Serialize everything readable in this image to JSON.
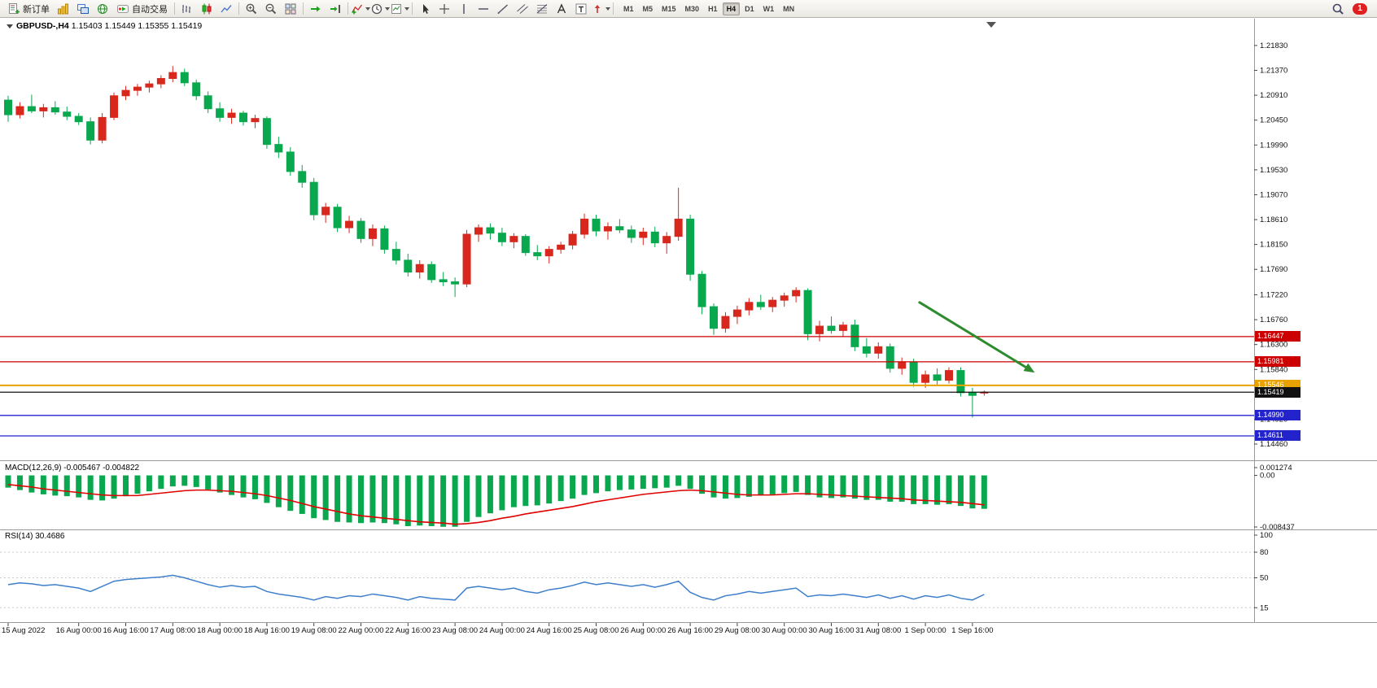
{
  "toolbar": {
    "new_order": "新订单",
    "autotrade": "自动交易",
    "timeframes": [
      "M1",
      "M5",
      "M15",
      "M30",
      "H1",
      "H4",
      "D1",
      "W1",
      "MN"
    ],
    "active_timeframe": "H4",
    "notification_badge": "1"
  },
  "chart": {
    "symbol_period": "GBPUSD-,H4",
    "ohlc": "1.15403 1.15449 1.15355 1.15419"
  },
  "colors": {
    "up": "#D8281E",
    "down": "#09A84E",
    "hline": {
      "red": "#CC0000",
      "orange": "#E8A200",
      "blue": "#2323CC",
      "black": "#111111"
    }
  },
  "chart_data": {
    "type": "candlestick",
    "symbol": "GBPUSD-",
    "period": "H4",
    "current": {
      "open": "1.15403",
      "high": "1.15449",
      "low": "1.15355",
      "close": "1.15419"
    },
    "price_axis": {
      "max": 1.2225,
      "min": 1.1425,
      "labels": [
        "1.21830",
        "1.21370",
        "1.20910",
        "1.20450",
        "1.19990",
        "1.19530",
        "1.19070",
        "1.18610",
        "1.18150",
        "1.17690",
        "1.17220",
        "1.16760",
        "1.16300",
        "1.15840",
        "1.14920",
        "1.14460"
      ]
    },
    "candles": [
      [
        1.2082,
        1.209,
        1.2042,
        1.2055
      ],
      [
        1.2055,
        1.2078,
        1.2048,
        1.207
      ],
      [
        1.207,
        1.2092,
        1.2058,
        1.2062
      ],
      [
        1.2062,
        1.2075,
        1.205,
        1.2068
      ],
      [
        1.2068,
        1.208,
        1.2055,
        1.206
      ],
      [
        1.206,
        1.207,
        1.2045,
        1.2052
      ],
      [
        1.2052,
        1.2058,
        1.2036,
        1.2042
      ],
      [
        1.2042,
        1.205,
        1.2,
        1.2008
      ],
      [
        1.2008,
        1.2058,
        1.2002,
        1.205
      ],
      [
        1.205,
        1.2096,
        1.2045,
        1.209
      ],
      [
        1.209,
        1.2108,
        1.2082,
        1.21
      ],
      [
        1.21,
        1.2112,
        1.209,
        1.2106
      ],
      [
        1.2106,
        1.2118,
        1.2096,
        1.2112
      ],
      [
        1.2112,
        1.2128,
        1.2104,
        1.2122
      ],
      [
        1.2122,
        1.2145,
        1.2115,
        1.2133
      ],
      [
        1.2133,
        1.214,
        1.2108,
        1.2114
      ],
      [
        1.2114,
        1.212,
        1.2082,
        1.209
      ],
      [
        1.209,
        1.2098,
        1.2058,
        1.2066
      ],
      [
        1.2066,
        1.2078,
        1.2042,
        1.205
      ],
      [
        1.205,
        1.2066,
        1.2038,
        1.2058
      ],
      [
        1.2058,
        1.2062,
        1.2035,
        1.2042
      ],
      [
        1.2042,
        1.2055,
        1.203,
        1.2048
      ],
      [
        1.2048,
        1.2052,
        1.1992,
        1.2
      ],
      [
        1.2,
        1.2014,
        1.1975,
        1.1986
      ],
      [
        1.1986,
        1.1995,
        1.1942,
        1.195
      ],
      [
        1.195,
        1.1962,
        1.192,
        1.193
      ],
      [
        1.193,
        1.1938,
        1.186,
        1.187
      ],
      [
        1.187,
        1.1892,
        1.1855,
        1.1884
      ],
      [
        1.1884,
        1.189,
        1.1838,
        1.1846
      ],
      [
        1.1846,
        1.1868,
        1.1836,
        1.1858
      ],
      [
        1.1858,
        1.1864,
        1.1818,
        1.1826
      ],
      [
        1.1826,
        1.1852,
        1.1812,
        1.1844
      ],
      [
        1.1844,
        1.185,
        1.1798,
        1.1806
      ],
      [
        1.1806,
        1.182,
        1.1778,
        1.1786
      ],
      [
        1.1786,
        1.1798,
        1.1756,
        1.1764
      ],
      [
        1.1764,
        1.1786,
        1.1752,
        1.1778
      ],
      [
        1.1778,
        1.1784,
        1.1744,
        1.175
      ],
      [
        1.175,
        1.1764,
        1.1738,
        1.1746
      ],
      [
        1.1746,
        1.1754,
        1.1718,
        1.1742
      ],
      [
        1.1742,
        1.1842,
        1.1736,
        1.1834
      ],
      [
        1.1834,
        1.1852,
        1.182,
        1.1846
      ],
      [
        1.1846,
        1.1854,
        1.1824,
        1.1836
      ],
      [
        1.1836,
        1.1846,
        1.1812,
        1.182
      ],
      [
        1.182,
        1.1836,
        1.1808,
        1.183
      ],
      [
        1.183,
        1.1834,
        1.1794,
        1.18
      ],
      [
        1.18,
        1.1814,
        1.1786,
        1.1794
      ],
      [
        1.1794,
        1.1812,
        1.178,
        1.1806
      ],
      [
        1.1806,
        1.182,
        1.1798,
        1.1814
      ],
      [
        1.1814,
        1.184,
        1.1806,
        1.1834
      ],
      [
        1.1834,
        1.1872,
        1.1826,
        1.1862
      ],
      [
        1.1862,
        1.187,
        1.183,
        1.184
      ],
      [
        1.184,
        1.1856,
        1.1824,
        1.1848
      ],
      [
        1.1848,
        1.1862,
        1.1836,
        1.1842
      ],
      [
        1.1842,
        1.185,
        1.1818,
        1.1828
      ],
      [
        1.1828,
        1.1846,
        1.1814,
        1.1838
      ],
      [
        1.1838,
        1.1848,
        1.181,
        1.1818
      ],
      [
        1.1818,
        1.1838,
        1.1798,
        1.183
      ],
      [
        1.183,
        1.192,
        1.1822,
        1.1862
      ],
      [
        1.1862,
        1.187,
        1.1748,
        1.176
      ],
      [
        1.176,
        1.1766,
        1.1686,
        1.17
      ],
      [
        1.17,
        1.1706,
        1.1648,
        1.166
      ],
      [
        1.166,
        1.169,
        1.1652,
        1.1682
      ],
      [
        1.1682,
        1.1702,
        1.1668,
        1.1694
      ],
      [
        1.1694,
        1.1716,
        1.1684,
        1.1708
      ],
      [
        1.1708,
        1.1722,
        1.1694,
        1.17
      ],
      [
        1.17,
        1.1718,
        1.169,
        1.1712
      ],
      [
        1.1712,
        1.1726,
        1.17,
        1.172
      ],
      [
        1.172,
        1.1736,
        1.1708,
        1.173
      ],
      [
        1.173,
        1.1734,
        1.1638,
        1.165
      ],
      [
        1.165,
        1.1674,
        1.1636,
        1.1664
      ],
      [
        1.1664,
        1.1682,
        1.165,
        1.1656
      ],
      [
        1.1656,
        1.1672,
        1.1644,
        1.1666
      ],
      [
        1.1666,
        1.1676,
        1.1618,
        1.1626
      ],
      [
        1.1626,
        1.1642,
        1.1606,
        1.1614
      ],
      [
        1.1614,
        1.1634,
        1.1604,
        1.1626
      ],
      [
        1.1626,
        1.1632,
        1.1578,
        1.1586
      ],
      [
        1.1586,
        1.1606,
        1.1574,
        1.1598
      ],
      [
        1.1598,
        1.1604,
        1.1552,
        1.156
      ],
      [
        1.156,
        1.1582,
        1.155,
        1.1574
      ],
      [
        1.1574,
        1.1586,
        1.1556,
        1.1564
      ],
      [
        1.1564,
        1.1588,
        1.1558,
        1.1582
      ],
      [
        1.1582,
        1.1588,
        1.1534,
        1.1541
      ],
      [
        1.1541,
        1.155,
        1.1495,
        1.1536
      ],
      [
        1.15403,
        1.15449,
        1.15355,
        1.15419
      ]
    ],
    "hlines": [
      {
        "price": 1.16447,
        "label": "1.16447",
        "color": "red"
      },
      {
        "price": 1.15981,
        "label": "1.15981",
        "color": "red"
      },
      {
        "price": 1.15546,
        "label": "1.15546",
        "color": "orange"
      },
      {
        "price": 1.15419,
        "label": "1.15419",
        "color": "black",
        "role": "current-price"
      },
      {
        "price": 1.1499,
        "label": "1.14990",
        "color": "blue"
      },
      {
        "price": 1.14611,
        "label": "1.14611",
        "color": "blue"
      }
    ],
    "arrow_annotation": {
      "from": {
        "index": 77.5,
        "price": 1.1708
      },
      "to": {
        "index": 87.3,
        "price": 1.1578
      },
      "color": "#2E8B2E"
    },
    "time_axis": {
      "labels": [
        "15 Aug 2022",
        "16 Aug 00:00",
        "16 Aug 16:00",
        "17 Aug 08:00",
        "18 Aug 00:00",
        "18 Aug 16:00",
        "19 Aug 08:00",
        "22 Aug 00:00",
        "22 Aug 16:00",
        "23 Aug 08:00",
        "24 Aug 00:00",
        "24 Aug 16:00",
        "25 Aug 08:00",
        "26 Aug 00:00",
        "26 Aug 16:00",
        "29 Aug 08:00",
        "30 Aug 00:00",
        "30 Aug 16:00",
        "31 Aug 08:00",
        "1 Sep 00:00",
        "1 Sep 16:00"
      ],
      "indices": [
        0,
        6,
        10,
        14,
        18,
        22,
        26,
        30,
        34,
        38,
        42,
        46,
        50,
        54,
        58,
        62,
        66,
        70,
        74,
        78,
        82
      ]
    },
    "indicators": [
      {
        "name": "MACD",
        "label": "MACD(12,26,9)",
        "values_text": "-0.005467 -0.004822",
        "axis": {
          "max": 0.001274,
          "min": -0.008437,
          "labels": [
            "0.001274",
            "0.00",
            "-0.008437"
          ]
        },
        "colors": {
          "histogram": "#09A84E",
          "signal": "#E00000"
        },
        "histogram": [
          -0.002,
          -0.0024,
          -0.0028,
          -0.0031,
          -0.0033,
          -0.0034,
          -0.0036,
          -0.004,
          -0.0041,
          -0.0038,
          -0.0034,
          -0.003,
          -0.0026,
          -0.0022,
          -0.0018,
          -0.0017,
          -0.0019,
          -0.0023,
          -0.0028,
          -0.0032,
          -0.0036,
          -0.0039,
          -0.0045,
          -0.0052,
          -0.0058,
          -0.0063,
          -0.007,
          -0.0073,
          -0.0076,
          -0.0077,
          -0.0078,
          -0.0077,
          -0.0078,
          -0.008,
          -0.0083,
          -0.0082,
          -0.0083,
          -0.0084,
          -0.0084,
          -0.0076,
          -0.0068,
          -0.0062,
          -0.0057,
          -0.0052,
          -0.005,
          -0.0049,
          -0.0046,
          -0.0042,
          -0.0038,
          -0.0032,
          -0.0029,
          -0.0026,
          -0.0024,
          -0.0023,
          -0.0022,
          -0.0021,
          -0.002,
          -0.0017,
          -0.0022,
          -0.003,
          -0.0036,
          -0.0038,
          -0.0037,
          -0.0035,
          -0.0033,
          -0.0031,
          -0.0029,
          -0.0027,
          -0.0032,
          -0.0036,
          -0.0037,
          -0.0036,
          -0.0038,
          -0.004,
          -0.004,
          -0.0043,
          -0.0043,
          -0.0047,
          -0.0047,
          -0.0048,
          -0.0047,
          -0.005,
          -0.0054,
          -0.005467
        ],
        "signal": [
          -0.0015,
          -0.0017,
          -0.0019,
          -0.0022,
          -0.0024,
          -0.0026,
          -0.0028,
          -0.003,
          -0.0032,
          -0.0033,
          -0.0033,
          -0.0033,
          -0.0031,
          -0.0029,
          -0.0027,
          -0.0025,
          -0.0024,
          -0.0024,
          -0.0025,
          -0.0026,
          -0.0028,
          -0.003,
          -0.0033,
          -0.0037,
          -0.0041,
          -0.0046,
          -0.0051,
          -0.0055,
          -0.0059,
          -0.0063,
          -0.0066,
          -0.0068,
          -0.007,
          -0.0072,
          -0.0074,
          -0.0076,
          -0.0077,
          -0.0078,
          -0.008,
          -0.0079,
          -0.0077,
          -0.0074,
          -0.007,
          -0.0067,
          -0.0063,
          -0.006,
          -0.0057,
          -0.0054,
          -0.0051,
          -0.0047,
          -0.0043,
          -0.004,
          -0.0037,
          -0.0034,
          -0.0031,
          -0.0029,
          -0.0027,
          -0.0025,
          -0.0024,
          -0.0025,
          -0.0027,
          -0.0029,
          -0.0031,
          -0.0032,
          -0.0032,
          -0.0032,
          -0.0031,
          -0.003,
          -0.003,
          -0.0031,
          -0.0032,
          -0.0033,
          -0.0034,
          -0.0035,
          -0.0036,
          -0.0037,
          -0.0038,
          -0.004,
          -0.0041,
          -0.0042,
          -0.0043,
          -0.0044,
          -0.0046,
          -0.004822
        ]
      },
      {
        "name": "RSI",
        "label": "RSI(14)",
        "value_text": "30.4686",
        "color": "#3E7FCB",
        "range": [
          0,
          100
        ],
        "levels": [
          100,
          80,
          50,
          15
        ],
        "values": [
          42,
          44,
          43,
          41,
          42,
          40,
          38,
          34,
          40,
          46,
          48,
          49,
          50,
          51,
          53,
          50,
          46,
          42,
          39,
          41,
          39,
          40,
          34,
          31,
          29,
          27,
          24,
          28,
          26,
          29,
          28,
          31,
          29,
          27,
          24,
          28,
          26,
          25,
          24,
          38,
          40,
          38,
          36,
          38,
          34,
          32,
          36,
          38,
          41,
          45,
          42,
          44,
          42,
          40,
          42,
          39,
          42,
          46,
          33,
          27,
          24,
          29,
          31,
          34,
          32,
          34,
          36,
          38,
          28,
          30,
          29,
          31,
          29,
          27,
          30,
          26,
          29,
          25,
          29,
          27,
          30,
          26,
          24,
          30.4686
        ]
      }
    ]
  }
}
